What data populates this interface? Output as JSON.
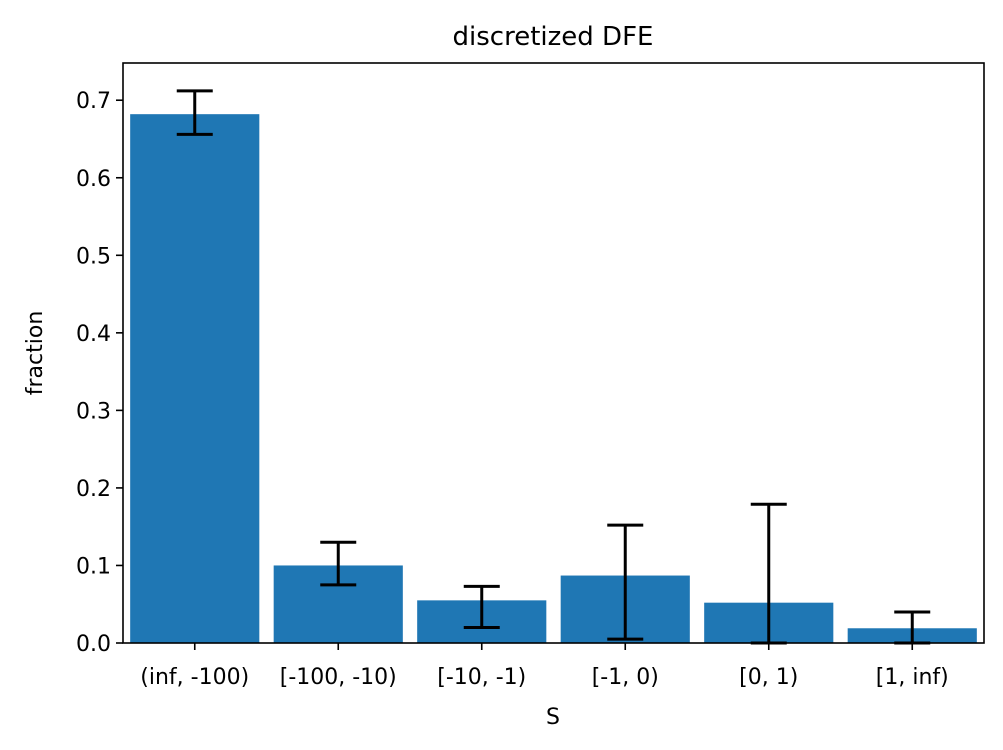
{
  "chart_data": {
    "type": "bar",
    "title": "discretized DFE",
    "xlabel": "S",
    "ylabel": "fraction",
    "categories": [
      "(inf, -100)",
      "[-100, -10)",
      "[-10, -1)",
      "[-1, 0)",
      "[0, 1)",
      "[1, inf)"
    ],
    "values": [
      0.682,
      0.1,
      0.055,
      0.087,
      0.052,
      0.019
    ],
    "error_low": [
      0.656,
      0.075,
      0.02,
      0.005,
      0.0,
      0.0
    ],
    "error_high": [
      0.712,
      0.13,
      0.073,
      0.152,
      0.179,
      0.04
    ],
    "ylim": [
      0,
      0.748
    ],
    "yticks": [
      "0.0",
      "0.1",
      "0.2",
      "0.3",
      "0.4",
      "0.5",
      "0.6",
      "0.7"
    ],
    "grid": false,
    "bar_color": "#1f77b4",
    "error_color": "#000000"
  }
}
